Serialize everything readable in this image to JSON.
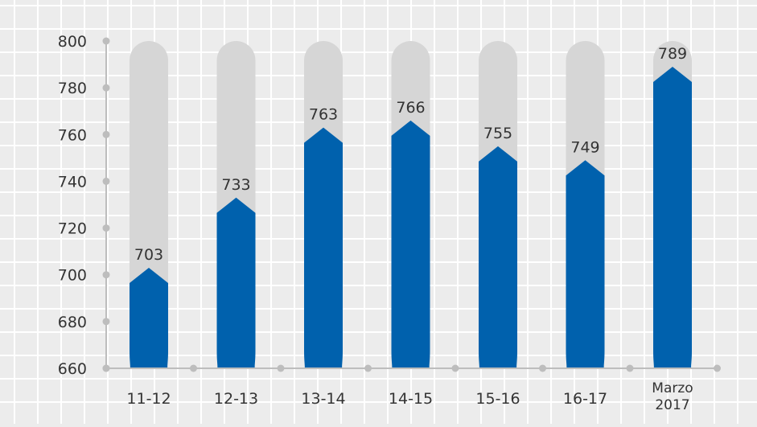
{
  "chart_data": {
    "type": "bar",
    "categories": [
      "11-12",
      "12-13",
      "13-14",
      "14-15",
      "15-16",
      "16-17",
      "Marzo 2017"
    ],
    "category_lines": [
      [
        "11-12"
      ],
      [
        "12-13"
      ],
      [
        "13-14"
      ],
      [
        "14-15"
      ],
      [
        "15-16"
      ],
      [
        "16-17"
      ],
      [
        "Marzo",
        "2017"
      ]
    ],
    "values": [
      703,
      733,
      763,
      766,
      755,
      749,
      789
    ],
    "data_labels": [
      "703",
      "733",
      "763",
      "766",
      "755",
      "749",
      "789"
    ],
    "ylim": [
      660,
      800
    ],
    "yticks": [
      660,
      680,
      700,
      720,
      740,
      760,
      780,
      800
    ],
    "ytick_labels": [
      "660",
      "680",
      "700",
      "720",
      "740",
      "760",
      "780",
      "800"
    ],
    "grid": true,
    "colors": {
      "background": "#ececec",
      "grid": "#ffffff",
      "bar": "#0061ad",
      "track": "#d6d6d6",
      "axis": "#bdbdbd",
      "text": "#333333"
    }
  }
}
